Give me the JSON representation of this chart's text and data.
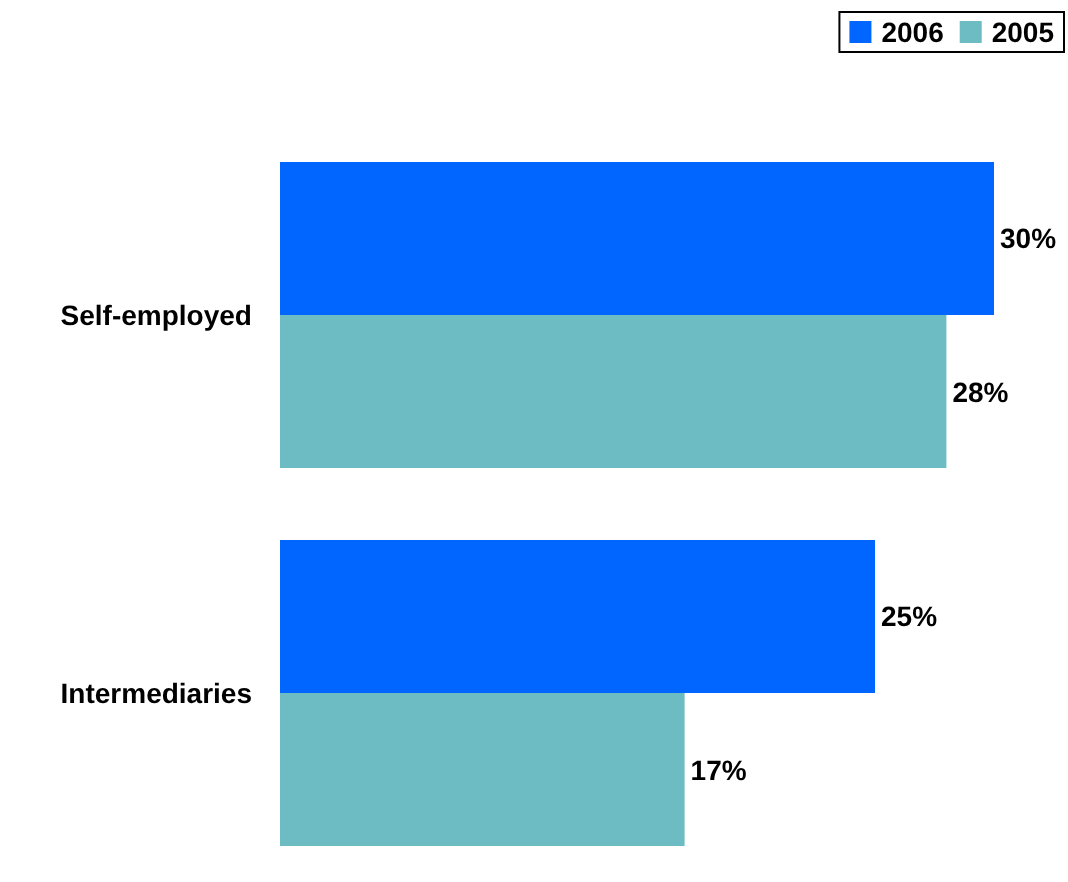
{
  "chart_data": {
    "type": "bar",
    "orientation": "horizontal",
    "categories": [
      "Self-employed",
      "Intermediaries"
    ],
    "series": [
      {
        "name": "2006",
        "color": "#0066ff",
        "values": [
          30,
          25
        ],
        "value_labels": [
          "30%",
          "25%"
        ]
      },
      {
        "name": "2005",
        "color": "#6dbcc3",
        "values": [
          28,
          17
        ],
        "value_labels": [
          "28%",
          "17%"
        ]
      }
    ],
    "legend": "top right",
    "tick_labels": "y"
  }
}
